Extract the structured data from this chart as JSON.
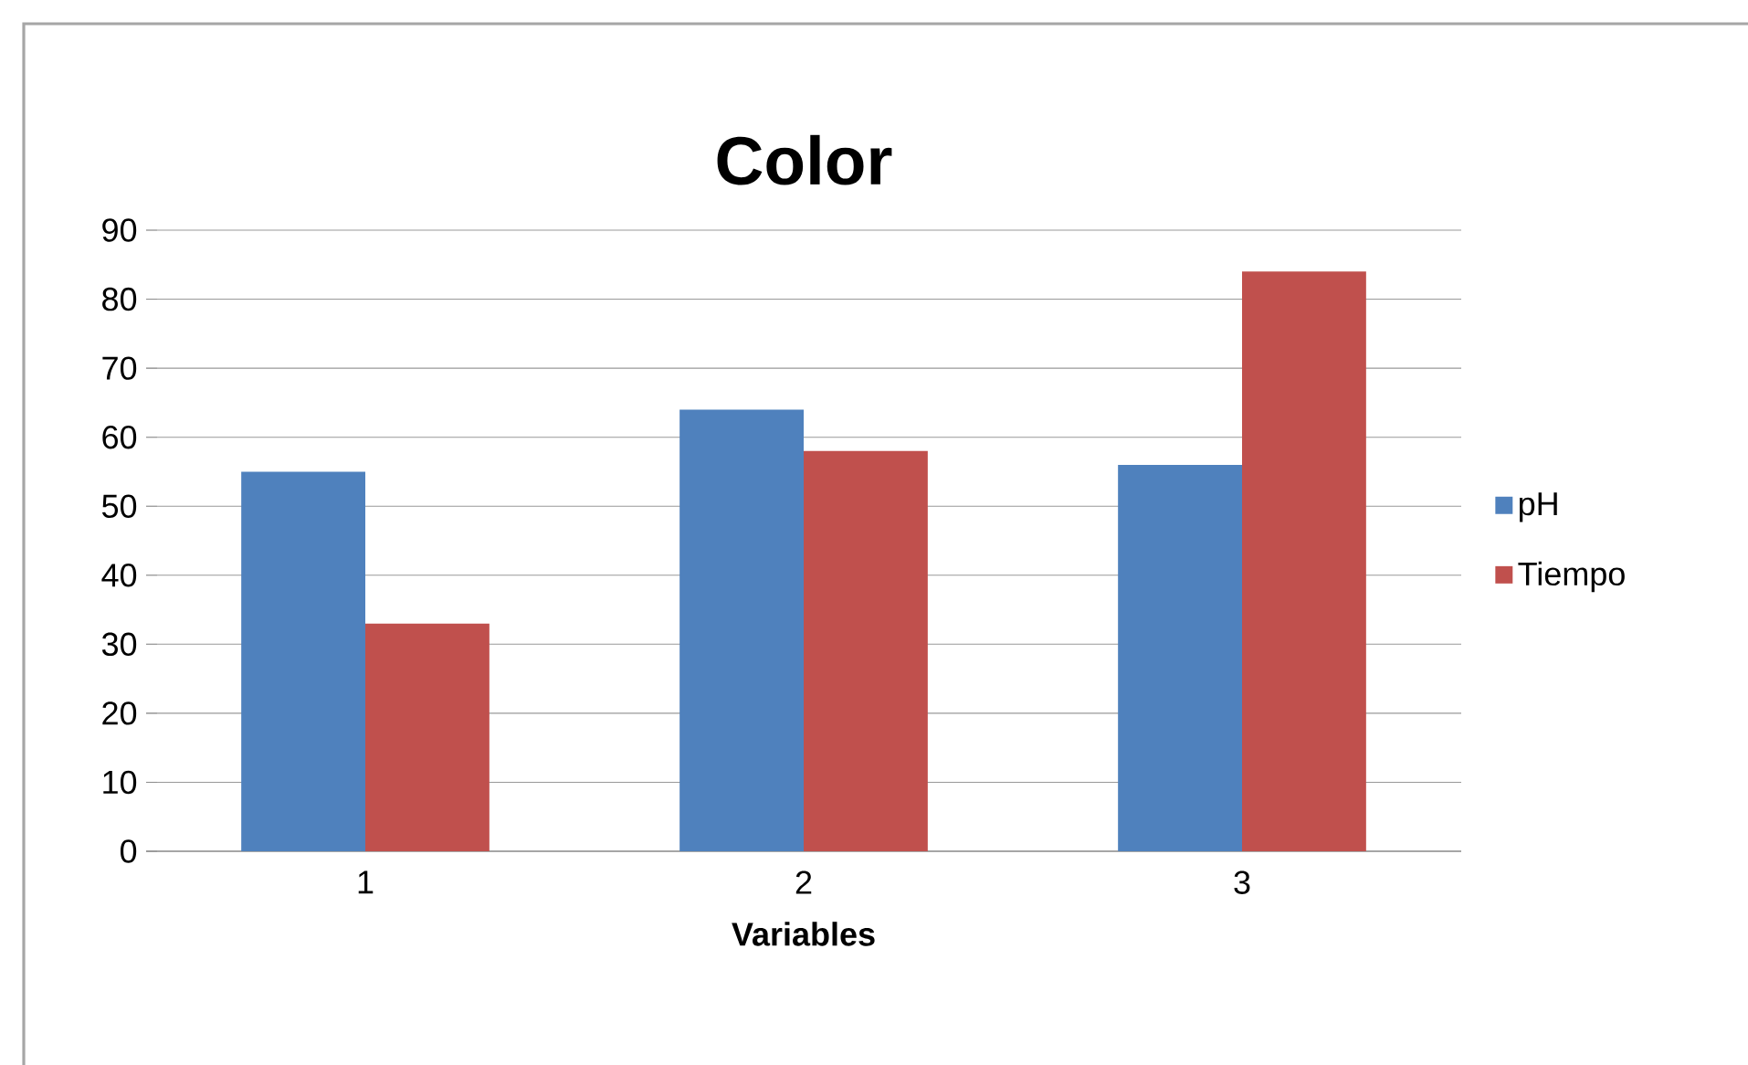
{
  "chart_data": {
    "type": "bar",
    "title": "Color",
    "xlabel": "Variables",
    "categories": [
      "1",
      "2",
      "3"
    ],
    "series": [
      {
        "name": "pH",
        "color": "#4f81bd",
        "values": [
          55,
          64,
          56
        ]
      },
      {
        "name": "Tiempo",
        "color": "#c0504d",
        "values": [
          33,
          58,
          84
        ]
      }
    ],
    "ylim": [
      0,
      90
    ],
    "yticks": [
      0,
      10,
      20,
      30,
      40,
      50,
      60,
      70,
      80,
      90
    ],
    "grid": "y",
    "legend": "right"
  }
}
